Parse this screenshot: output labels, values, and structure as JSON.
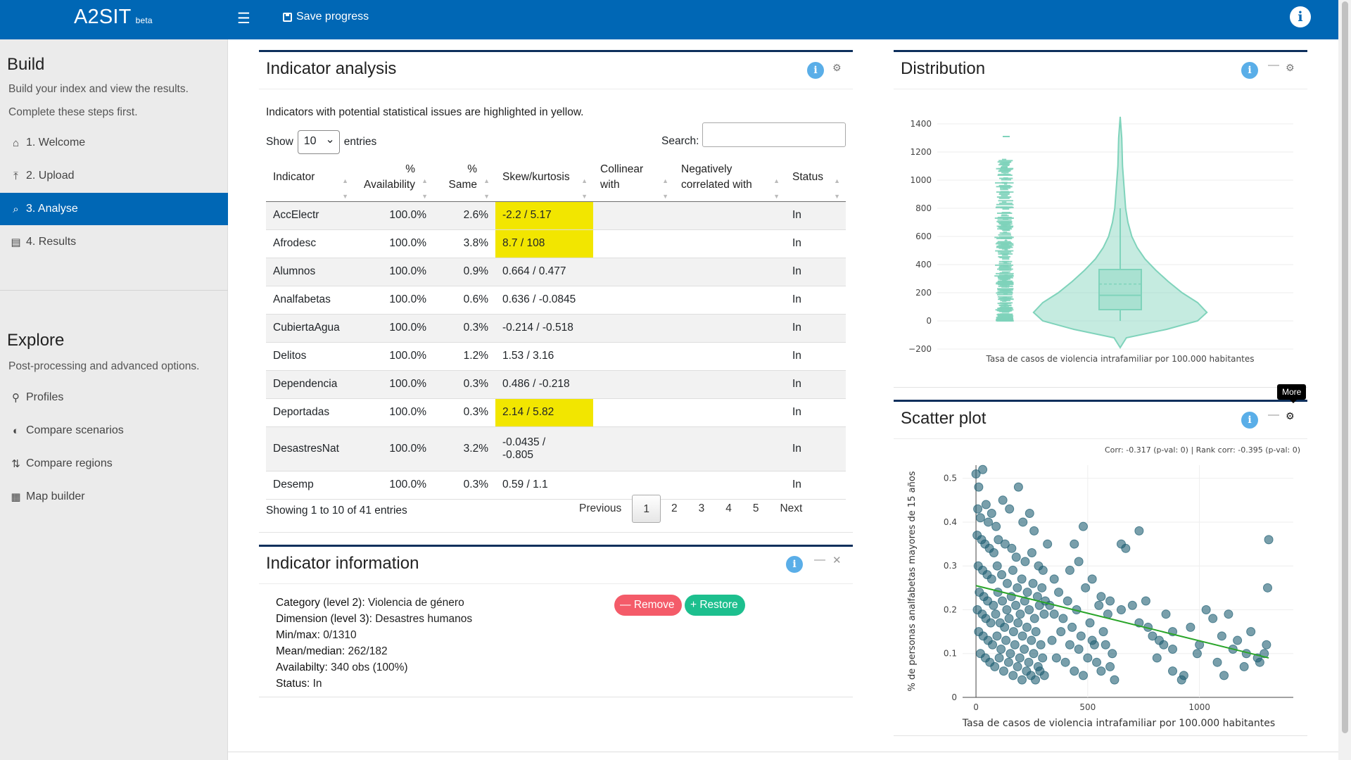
{
  "app": {
    "brand": "A2SIT",
    "beta": "beta",
    "save_label": "Save progress",
    "info_glyph": "i"
  },
  "sidebar": {
    "build_title": "Build",
    "build_desc1": "Build your index and view the results.",
    "build_desc2": "Complete these steps first.",
    "items": [
      {
        "label": "1. Welcome",
        "icon": "home-icon"
      },
      {
        "label": "2. Upload",
        "icon": "upload-icon"
      },
      {
        "label": "3. Analyse",
        "icon": "search-chart-icon"
      },
      {
        "label": "4. Results",
        "icon": "bar-chart-icon"
      }
    ],
    "explore_title": "Explore",
    "explore_desc": "Post-processing and advanced options.",
    "explore_items": [
      {
        "label": "Profiles",
        "icon": "map-marker-icon"
      },
      {
        "label": "Compare scenarios",
        "icon": "adjust-icon"
      },
      {
        "label": "Compare regions",
        "icon": "exchange-icon"
      },
      {
        "label": "Map builder",
        "icon": "map-icon"
      }
    ],
    "active_color": "#0067b5"
  },
  "analysis": {
    "title": "Indicator analysis",
    "note": "Indicators with potential statistical issues are highlighted in yellow.",
    "show_label": "Show",
    "show_value": "10",
    "entries_label": "entries",
    "search_label": "Search:",
    "headers": {
      "indicator": "Indicator",
      "availability": [
        "%",
        "Availability"
      ],
      "same": [
        "%",
        "Same"
      ],
      "skew": "Skew/kurtosis",
      "collinear": [
        "Collinear",
        "with"
      ],
      "negcorr": [
        "Negatively",
        "correlated with"
      ],
      "status": "Status"
    },
    "rows": [
      {
        "indicator": "AccElectr",
        "availability": "100.0%",
        "same": "2.6%",
        "skew": "-2.2 / 5.17",
        "skew2": "",
        "collinear": "",
        "neg": "",
        "status": "In",
        "highlight": true
      },
      {
        "indicator": "Afrodesc",
        "availability": "100.0%",
        "same": "3.8%",
        "skew": "8.7 / 108",
        "skew2": "",
        "collinear": "",
        "neg": "",
        "status": "In",
        "highlight": true
      },
      {
        "indicator": "Alumnos",
        "availability": "100.0%",
        "same": "0.9%",
        "skew": "0.664 / 0.477",
        "skew2": "",
        "collinear": "",
        "neg": "",
        "status": "In",
        "highlight": false
      },
      {
        "indicator": "Analfabetas",
        "availability": "100.0%",
        "same": "0.6%",
        "skew": "0.636 / -0.0845",
        "skew2": "",
        "collinear": "",
        "neg": "",
        "status": "In",
        "highlight": false
      },
      {
        "indicator": "CubiertaAgua",
        "availability": "100.0%",
        "same": "0.3%",
        "skew": "-0.214 / -0.518",
        "skew2": "",
        "collinear": "",
        "neg": "",
        "status": "In",
        "highlight": false
      },
      {
        "indicator": "Delitos",
        "availability": "100.0%",
        "same": "1.2%",
        "skew": "1.53 / 3.16",
        "skew2": "",
        "collinear": "",
        "neg": "",
        "status": "In",
        "highlight": false
      },
      {
        "indicator": "Dependencia",
        "availability": "100.0%",
        "same": "0.3%",
        "skew": "0.486 / -0.218",
        "skew2": "",
        "collinear": "",
        "neg": "",
        "status": "In",
        "highlight": false
      },
      {
        "indicator": "Deportadas",
        "availability": "100.0%",
        "same": "0.3%",
        "skew": "2.14 / 5.82",
        "skew2": "",
        "collinear": "",
        "neg": "",
        "status": "In",
        "highlight": true
      },
      {
        "indicator": "DesastresNat",
        "availability": "100.0%",
        "same": "3.2%",
        "skew": "-0.0435 /",
        "skew2": "-0.805",
        "collinear": "",
        "neg": "",
        "status": "In",
        "highlight": false
      },
      {
        "indicator": "Desemp",
        "availability": "100.0%",
        "same": "0.3%",
        "skew": "0.59 / 1.1",
        "skew2": "",
        "collinear": "",
        "neg": "",
        "status": "In",
        "highlight": false
      }
    ],
    "showing": "Showing 1 to 10 of 41 entries",
    "pager": {
      "previous": "Previous",
      "pages": [
        "1",
        "2",
        "3",
        "4",
        "5"
      ],
      "next": "Next",
      "current": "1"
    },
    "highlight_color": "#f2e600"
  },
  "info": {
    "title": "Indicator information",
    "lines": [
      {
        "k": "Category (level 2):",
        "v": "Violencia de género"
      },
      {
        "k": "Dimension (level 3):",
        "v": "Desastres humanos"
      },
      {
        "k": "Min/max:",
        "v": "0/1310"
      },
      {
        "k": "Mean/median:",
        "v": "262/182"
      },
      {
        "k": "Availabilty:",
        "v": "340 obs (100%)"
      },
      {
        "k": "Status:",
        "v": "In"
      }
    ],
    "remove_label": "Remove",
    "restore_label": "Restore",
    "remove_color": "#f45b69",
    "restore_color": "#1dbf8e"
  },
  "distribution": {
    "title": "Distribution",
    "xlabel": "Tasa de casos de violencia intrafamiliar por 100.000 habitantes",
    "yticks": [
      "1400",
      "1200",
      "1000",
      "800",
      "600",
      "400",
      "200",
      "0",
      "−200"
    ],
    "color": "#7fd3bb"
  },
  "scatter": {
    "title": "Scatter plot",
    "tooltip": "More",
    "corr_text": "Corr: -0.317 (p-val: 0) | Rank corr: -0.395 (p-val: 0)",
    "xlabel": "Tasa de casos de violencia intrafamiliar por 100.000 habitantes",
    "ylabel": "% de personas analfabetas mayores de 15 años",
    "xticks": [
      "0",
      "500",
      "1000"
    ],
    "yticks": [
      "0",
      "0.1",
      "0.2",
      "0.3",
      "0.4",
      "0.5"
    ],
    "point_color": "#1f5f73",
    "line_color": "#2aa52a"
  },
  "chart_data": [
    {
      "type": "violin",
      "title": "Distribution",
      "xlabel": "Tasa de casos de violencia intrafamiliar por 100.000 habitantes",
      "ylim": [
        -200,
        1500
      ],
      "summary": {
        "min": 0,
        "max": 1310,
        "median": 182,
        "mean": 262,
        "q1": 80,
        "q3": 365,
        "upper_fence": 800
      }
    },
    {
      "type": "scatter",
      "title": "Scatter plot",
      "xlabel": "Tasa de casos de violencia intrafamiliar por 100.000 habitantes",
      "ylabel": "% de personas analfabetas mayores de 15 años",
      "xlim": [
        -60,
        1420
      ],
      "ylim": [
        0,
        0.53
      ],
      "trend": {
        "x": [
          0,
          1310
        ],
        "y": [
          0.255,
          0.09
        ]
      },
      "points": [
        [
          0,
          0.51
        ],
        [
          30,
          0.52
        ],
        [
          12,
          0.48
        ],
        [
          45,
          0.44
        ],
        [
          70,
          0.42
        ],
        [
          8,
          0.43
        ],
        [
          20,
          0.41
        ],
        [
          55,
          0.4
        ],
        [
          90,
          0.39
        ],
        [
          120,
          0.45
        ],
        [
          150,
          0.43
        ],
        [
          190,
          0.48
        ],
        [
          210,
          0.4
        ],
        [
          240,
          0.42
        ],
        [
          260,
          0.38
        ],
        [
          5,
          0.37
        ],
        [
          25,
          0.36
        ],
        [
          40,
          0.35
        ],
        [
          60,
          0.34
        ],
        [
          80,
          0.33
        ],
        [
          100,
          0.36
        ],
        [
          130,
          0.35
        ],
        [
          160,
          0.34
        ],
        [
          180,
          0.32
        ],
        [
          220,
          0.31
        ],
        [
          250,
          0.33
        ],
        [
          280,
          0.3
        ],
        [
          300,
          0.29
        ],
        [
          320,
          0.35
        ],
        [
          350,
          0.27
        ],
        [
          10,
          0.3
        ],
        [
          30,
          0.29
        ],
        [
          50,
          0.28
        ],
        [
          70,
          0.27
        ],
        [
          95,
          0.3
        ],
        [
          115,
          0.28
        ],
        [
          140,
          0.26
        ],
        [
          165,
          0.29
        ],
        [
          185,
          0.25
        ],
        [
          205,
          0.27
        ],
        [
          230,
          0.24
        ],
        [
          255,
          0.26
        ],
        [
          275,
          0.23
        ],
        [
          295,
          0.25
        ],
        [
          310,
          0.22
        ],
        [
          15,
          0.24
        ],
        [
          35,
          0.23
        ],
        [
          52,
          0.22
        ],
        [
          78,
          0.21
        ],
        [
          98,
          0.24
        ],
        [
          118,
          0.22
        ],
        [
          138,
          0.2
        ],
        [
          158,
          0.23
        ],
        [
          178,
          0.21
        ],
        [
          198,
          0.19
        ],
        [
          218,
          0.22
        ],
        [
          238,
          0.2
        ],
        [
          262,
          0.18
        ],
        [
          284,
          0.21
        ],
        [
          305,
          0.19
        ],
        [
          6,
          0.2
        ],
        [
          28,
          0.19
        ],
        [
          44,
          0.18
        ],
        [
          66,
          0.17
        ],
        [
          88,
          0.19
        ],
        [
          108,
          0.17
        ],
        [
          128,
          0.16
        ],
        [
          148,
          0.18
        ],
        [
          168,
          0.15
        ],
        [
          188,
          0.17
        ],
        [
          208,
          0.14
        ],
        [
          228,
          0.16
        ],
        [
          248,
          0.13
        ],
        [
          268,
          0.15
        ],
        [
          290,
          0.12
        ],
        [
          12,
          0.15
        ],
        [
          32,
          0.14
        ],
        [
          54,
          0.13
        ],
        [
          74,
          0.12
        ],
        [
          94,
          0.14
        ],
        [
          112,
          0.11
        ],
        [
          134,
          0.13
        ],
        [
          154,
          0.1
        ],
        [
          174,
          0.12
        ],
        [
          196,
          0.09
        ],
        [
          216,
          0.11
        ],
        [
          236,
          0.08
        ],
        [
          258,
          0.1
        ],
        [
          278,
          0.07
        ],
        [
          298,
          0.09
        ],
        [
          20,
          0.1
        ],
        [
          42,
          0.09
        ],
        [
          62,
          0.08
        ],
        [
          84,
          0.07
        ],
        [
          104,
          0.09
        ],
        [
          124,
          0.06
        ],
        [
          146,
          0.08
        ],
        [
          166,
          0.05
        ],
        [
          186,
          0.07
        ],
        [
          206,
          0.04
        ],
        [
          226,
          0.06
        ],
        [
          246,
          0.05
        ],
        [
          266,
          0.04
        ],
        [
          286,
          0.06
        ],
        [
          306,
          0.05
        ],
        [
          330,
          0.21
        ],
        [
          350,
          0.19
        ],
        [
          370,
          0.24
        ],
        [
          390,
          0.18
        ],
        [
          410,
          0.22
        ],
        [
          430,
          0.16
        ],
        [
          450,
          0.2
        ],
        [
          470,
          0.14
        ],
        [
          490,
          0.25
        ],
        [
          510,
          0.17
        ],
        [
          530,
          0.12
        ],
        [
          550,
          0.21
        ],
        [
          570,
          0.15
        ],
        [
          590,
          0.19
        ],
        [
          610,
          0.1
        ],
        [
          340,
          0.13
        ],
        [
          360,
          0.09
        ],
        [
          380,
          0.15
        ],
        [
          400,
          0.08
        ],
        [
          420,
          0.12
        ],
        [
          440,
          0.06
        ],
        [
          460,
          0.11
        ],
        [
          480,
          0.05
        ],
        [
          500,
          0.09
        ],
        [
          520,
          0.13
        ],
        [
          540,
          0.08
        ],
        [
          560,
          0.06
        ],
        [
          580,
          0.12
        ],
        [
          600,
          0.07
        ],
        [
          620,
          0.04
        ],
        [
          440,
          0.35
        ],
        [
          480,
          0.39
        ],
        [
          420,
          0.29
        ],
        [
          460,
          0.31
        ],
        [
          520,
          0.27
        ],
        [
          560,
          0.23
        ],
        [
          600,
          0.22
        ],
        [
          650,
          0.2
        ],
        [
          700,
          0.21
        ],
        [
          730,
          0.17
        ],
        [
          760,
          0.22
        ],
        [
          790,
          0.14
        ],
        [
          820,
          0.13
        ],
        [
          850,
          0.19
        ],
        [
          880,
          0.11
        ],
        [
          650,
          0.35
        ],
        [
          670,
          0.34
        ],
        [
          730,
          0.38
        ],
        [
          770,
          0.16
        ],
        [
          810,
          0.09
        ],
        [
          840,
          0.12
        ],
        [
          880,
          0.15
        ],
        [
          920,
          0.04
        ],
        [
          960,
          0.16
        ],
        [
          1000,
          0.12
        ],
        [
          1030,
          0.2
        ],
        [
          1060,
          0.18
        ],
        [
          1080,
          0.08
        ],
        [
          1100,
          0.14
        ],
        [
          1130,
          0.19
        ],
        [
          1150,
          0.11
        ],
        [
          1170,
          0.13
        ],
        [
          1200,
          0.07
        ],
        [
          1230,
          0.15
        ],
        [
          1270,
          0.08
        ],
        [
          1290,
          0.1
        ],
        [
          1300,
          0.12
        ],
        [
          1310,
          0.36
        ],
        [
          1305,
          0.25
        ],
        [
          1260,
          0.09
        ],
        [
          1210,
          0.1
        ],
        [
          1110,
          0.05
        ],
        [
          990,
          0.1
        ],
        [
          930,
          0.05
        ],
        [
          880,
          0.06
        ]
      ]
    }
  ]
}
